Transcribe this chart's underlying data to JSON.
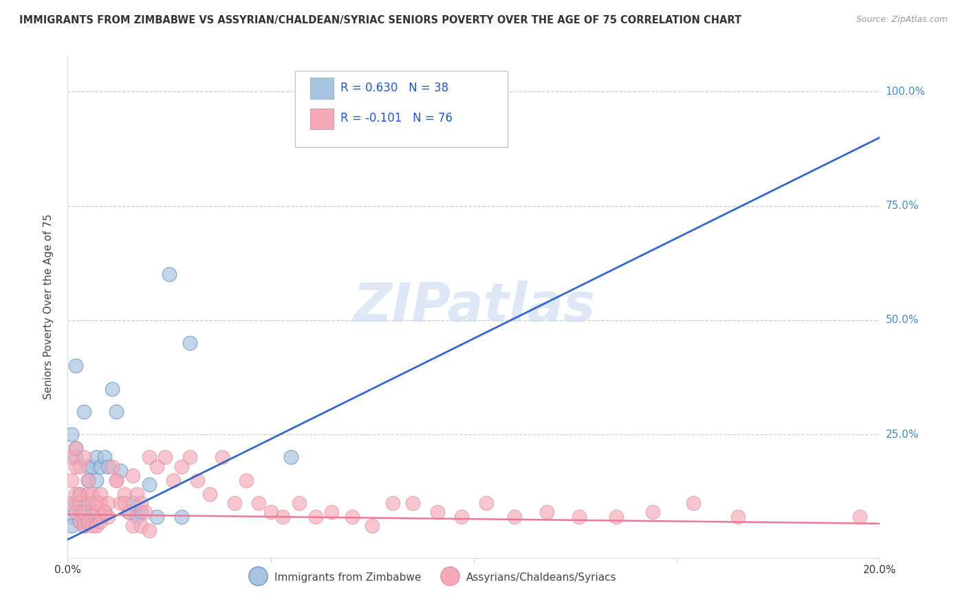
{
  "title": "IMMIGRANTS FROM ZIMBABWE VS ASSYRIAN/CHALDEAN/SYRIAC SENIORS POVERTY OVER THE AGE OF 75 CORRELATION CHART",
  "source": "Source: ZipAtlas.com",
  "ylabel": "Seniors Poverty Over the Age of 75",
  "xlim": [
    0.0,
    0.2
  ],
  "ylim": [
    -0.02,
    1.08
  ],
  "blue_R": 0.63,
  "blue_N": 38,
  "pink_R": -0.101,
  "pink_N": 76,
  "blue_color": "#A8C4E0",
  "pink_color": "#F4A8B8",
  "blue_line_color": "#3366CC",
  "pink_line_color": "#EE7799",
  "watermark": "ZIPatlas",
  "legend_label_blue": "Immigrants from Zimbabwe",
  "legend_label_pink": "Assyrians/Chaldeans/Syriacs",
  "blue_line_x0": 0.0,
  "blue_line_y0": 0.02,
  "blue_line_x1": 0.2,
  "blue_line_y1": 0.9,
  "pink_line_x0": 0.0,
  "pink_line_y0": 0.075,
  "pink_line_x1": 0.2,
  "pink_line_y1": 0.055,
  "blue_scatter_x": [
    0.001,
    0.001,
    0.002,
    0.002,
    0.002,
    0.003,
    0.003,
    0.003,
    0.004,
    0.004,
    0.005,
    0.005,
    0.005,
    0.006,
    0.006,
    0.007,
    0.007,
    0.008,
    0.008,
    0.009,
    0.01,
    0.011,
    0.012,
    0.013,
    0.015,
    0.016,
    0.017,
    0.018,
    0.02,
    0.022,
    0.025,
    0.028,
    0.03,
    0.055,
    0.1,
    0.001,
    0.002,
    0.004
  ],
  "blue_scatter_y": [
    0.07,
    0.05,
    0.2,
    0.22,
    0.1,
    0.12,
    0.08,
    0.06,
    0.06,
    0.05,
    0.15,
    0.18,
    0.1,
    0.18,
    0.08,
    0.2,
    0.15,
    0.18,
    0.07,
    0.2,
    0.18,
    0.35,
    0.3,
    0.17,
    0.08,
    0.1,
    0.07,
    0.08,
    0.14,
    0.07,
    0.6,
    0.07,
    0.45,
    0.2,
    1.0,
    0.25,
    0.4,
    0.3
  ],
  "pink_scatter_x": [
    0.001,
    0.001,
    0.002,
    0.002,
    0.002,
    0.003,
    0.003,
    0.003,
    0.004,
    0.004,
    0.005,
    0.005,
    0.006,
    0.006,
    0.007,
    0.007,
    0.008,
    0.008,
    0.009,
    0.01,
    0.011,
    0.012,
    0.013,
    0.014,
    0.015,
    0.016,
    0.017,
    0.018,
    0.019,
    0.02,
    0.022,
    0.024,
    0.026,
    0.028,
    0.03,
    0.032,
    0.035,
    0.038,
    0.041,
    0.044,
    0.047,
    0.05,
    0.053,
    0.057,
    0.061,
    0.065,
    0.07,
    0.075,
    0.08,
    0.085,
    0.091,
    0.097,
    0.103,
    0.11,
    0.118,
    0.126,
    0.135,
    0.144,
    0.154,
    0.165,
    0.001,
    0.002,
    0.003,
    0.004,
    0.005,
    0.006,
    0.007,
    0.008,
    0.009,
    0.01,
    0.012,
    0.014,
    0.016,
    0.018,
    0.02,
    0.195
  ],
  "pink_scatter_y": [
    0.15,
    0.1,
    0.18,
    0.12,
    0.08,
    0.1,
    0.12,
    0.06,
    0.05,
    0.08,
    0.12,
    0.06,
    0.1,
    0.05,
    0.08,
    0.05,
    0.1,
    0.06,
    0.08,
    0.07,
    0.18,
    0.15,
    0.1,
    0.12,
    0.08,
    0.16,
    0.12,
    0.1,
    0.08,
    0.2,
    0.18,
    0.2,
    0.15,
    0.18,
    0.2,
    0.15,
    0.12,
    0.2,
    0.1,
    0.15,
    0.1,
    0.08,
    0.07,
    0.1,
    0.07,
    0.08,
    0.07,
    0.05,
    0.1,
    0.1,
    0.08,
    0.07,
    0.1,
    0.07,
    0.08,
    0.07,
    0.07,
    0.08,
    0.1,
    0.07,
    0.2,
    0.22,
    0.18,
    0.2,
    0.15,
    0.12,
    0.1,
    0.12,
    0.08,
    0.1,
    0.15,
    0.1,
    0.05,
    0.05,
    0.04,
    0.07
  ]
}
